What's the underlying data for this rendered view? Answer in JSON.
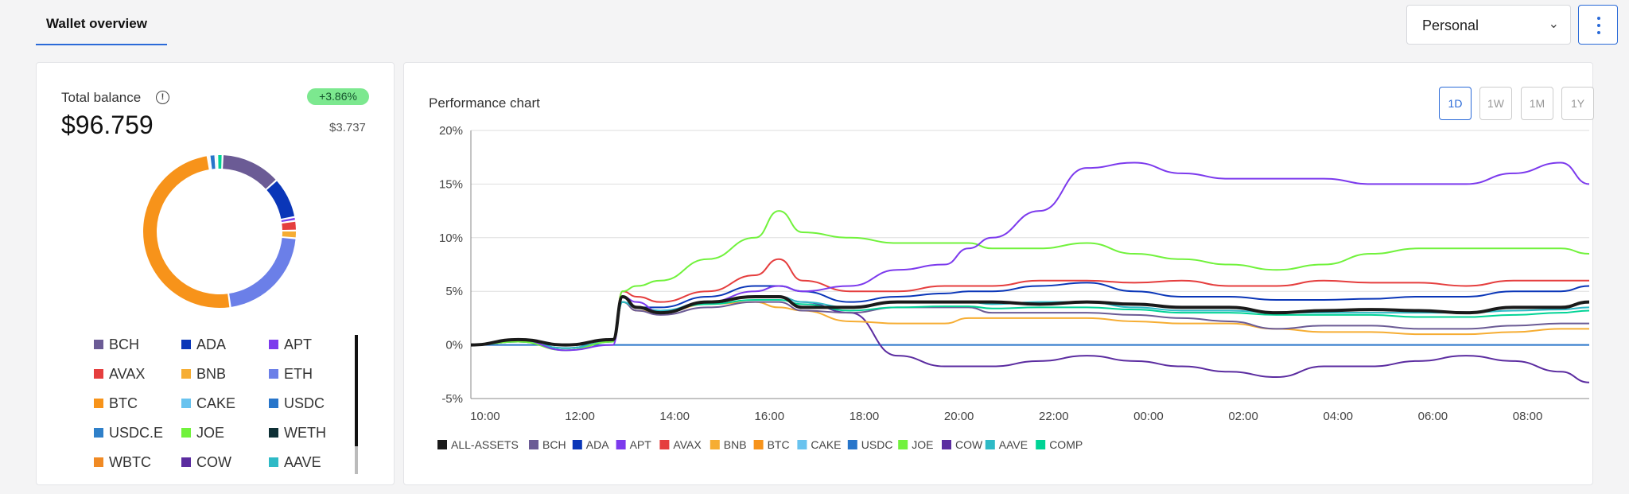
{
  "tabs": [
    {
      "label": "Wallet overview"
    }
  ],
  "account_select": {
    "value": "Personal"
  },
  "balance": {
    "label": "Total balance",
    "amount": "$96.759",
    "change_pct": "+3.86%",
    "change_value": "$3.737"
  },
  "colors": {
    "accent": "#2a6ad8",
    "BCH": "#6b5b95",
    "ADA": "#0a36b8",
    "APT": "#7c3aed",
    "AVAX": "#e53e3e",
    "BNB": "#f6ad33",
    "ETH": "#6b7fe8",
    "BTC": "#f7931a",
    "CAKE": "#69c3ef",
    "USDC": "#2775ca",
    "USDC.E": "#2f80c9",
    "JOE": "#71f23c",
    "WETH": "#0e2f35",
    "WBTC": "#f08a24",
    "COW": "#5b2ca0",
    "AAVE": "#2ebac6",
    "COMP": "#00d395",
    "ALL-ASSETS": "#1a1a1a"
  },
  "allocation": {
    "title": "",
    "slices": [
      {
        "name": "BCH",
        "value": 12.5
      },
      {
        "name": "ADA",
        "value": 8.5
      },
      {
        "name": "APT",
        "value": 0.8
      },
      {
        "name": "AVAX",
        "value": 2.0
      },
      {
        "name": "BNB",
        "value": 1.6
      },
      {
        "name": "ETH",
        "value": 21.0
      },
      {
        "name": "BTC",
        "value": 49.0
      },
      {
        "name": "CAKE",
        "value": 0.4
      },
      {
        "name": "USDC",
        "value": 1.2
      },
      {
        "name": "WETH",
        "value": 0.4
      },
      {
        "name": "COMP",
        "value": 1.1
      }
    ]
  },
  "legend_items": [
    "BCH",
    "ADA",
    "APT",
    "AVAX",
    "BNB",
    "ETH",
    "BTC",
    "CAKE",
    "USDC",
    "USDC.E",
    "JOE",
    "WETH",
    "WBTC",
    "COW",
    "AAVE"
  ],
  "performance": {
    "title": "Performance chart",
    "ranges": [
      "1D",
      "1W",
      "1M",
      "1Y"
    ],
    "active_range": "1D"
  },
  "chart_data": {
    "type": "line",
    "title": "Performance chart",
    "xlabel": "",
    "ylabel": "",
    "x_ticks": [
      "10:00",
      "12:00",
      "14:00",
      "16:00",
      "18:00",
      "20:00",
      "22:00",
      "00:00",
      "02:00",
      "04:00",
      "06:00",
      "08:00"
    ],
    "y_ticks": [
      "20%",
      "15%",
      "10%",
      "5%",
      "0%",
      "-5%"
    ],
    "ylim": [
      -5,
      20
    ],
    "x_hours": [
      0,
      1,
      2,
      3,
      3.2,
      3.5,
      4,
      5,
      6,
      6.5,
      7,
      8,
      9,
      10,
      10.5,
      11,
      12,
      13,
      14,
      15,
      16,
      17,
      18,
      19,
      20,
      21,
      22,
      23,
      23.6
    ],
    "grid": true,
    "legend_position": "bottom-left",
    "series": [
      {
        "name": "ALL-ASSETS",
        "values": [
          0,
          0.5,
          0,
          0.5,
          4.5,
          3.5,
          3,
          4,
          4.5,
          4.5,
          3.5,
          3.5,
          4,
          4,
          4,
          4,
          3.8,
          4,
          3.8,
          3.5,
          3.5,
          3,
          3.2,
          3.3,
          3.2,
          3,
          3.5,
          3.5,
          4
        ]
      },
      {
        "name": "BCH",
        "values": [
          0,
          0.3,
          -0.3,
          0.3,
          4,
          3.2,
          2.8,
          3.5,
          4,
          4,
          3.2,
          3,
          3.5,
          3.5,
          3.5,
          3,
          3,
          3,
          2.8,
          2.5,
          2.2,
          1.5,
          1.8,
          1.8,
          1.5,
          1.5,
          1.8,
          2,
          2
        ]
      },
      {
        "name": "ADA",
        "values": [
          0,
          0.5,
          0,
          0.5,
          4.5,
          3.5,
          3.5,
          4.5,
          5.5,
          5.5,
          5,
          4,
          4.5,
          4.8,
          5,
          5,
          5.5,
          5.8,
          5,
          4.5,
          4.5,
          4.2,
          4.2,
          4.3,
          4.5,
          4.5,
          5,
          5,
          5.5
        ]
      },
      {
        "name": "APT",
        "values": [
          0,
          0.5,
          -0.5,
          0,
          4.5,
          4,
          3,
          4,
          5,
          5.5,
          5,
          5.5,
          7,
          7.5,
          9,
          10,
          12.5,
          16.5,
          17,
          16,
          15.5,
          15.5,
          15.5,
          15,
          15,
          15,
          16,
          17,
          15
        ]
      },
      {
        "name": "AVAX",
        "values": [
          0,
          0.5,
          0,
          0.5,
          5,
          4.5,
          4,
          5,
          6.5,
          8,
          6,
          5,
          5,
          5.5,
          5.5,
          5.5,
          6,
          6,
          5.8,
          6,
          5.5,
          5.5,
          6,
          5.8,
          5.8,
          5.5,
          6,
          6,
          6
        ]
      },
      {
        "name": "BNB",
        "values": [
          0,
          0.3,
          -0.3,
          0.3,
          4,
          3.2,
          3,
          3.8,
          4,
          3.5,
          3.2,
          2.2,
          2,
          2,
          2.5,
          2.5,
          2.5,
          2.5,
          2.2,
          2,
          2,
          1.5,
          1.2,
          1.2,
          1,
          1,
          1.2,
          1.5,
          1.5
        ]
      },
      {
        "name": "JOE",
        "values": [
          0,
          0.3,
          -0.5,
          0.3,
          5,
          5.5,
          6,
          8,
          10,
          12.5,
          10.5,
          10,
          9.5,
          9.5,
          9.5,
          9,
          9,
          9.5,
          8.5,
          8,
          7.5,
          7,
          7.5,
          8.5,
          9,
          9,
          9,
          9,
          8.5
        ]
      },
      {
        "name": "COW",
        "values": [
          0,
          0.5,
          0,
          0.5,
          4.5,
          3.5,
          3,
          4,
          4.5,
          4.5,
          4,
          3,
          -1,
          -2,
          -2,
          -2,
          -1.5,
          -1,
          -1.5,
          -2,
          -2.5,
          -3,
          -2,
          -2,
          -1.5,
          -1,
          -1.5,
          -2.5,
          -3.5
        ]
      },
      {
        "name": "AAVE",
        "values": [
          0,
          0.3,
          -0.3,
          0.3,
          4,
          3.5,
          3.2,
          4,
          4.5,
          4.5,
          4,
          3.5,
          4,
          4,
          4,
          3.8,
          4,
          4,
          3.5,
          3.2,
          3.2,
          3,
          3,
          3,
          3,
          3,
          3.2,
          3.3,
          3.5
        ]
      },
      {
        "name": "COMP",
        "values": [
          0,
          0.3,
          -0.3,
          0.3,
          4,
          3.5,
          3.2,
          3.8,
          4.2,
          4.2,
          3.8,
          3.2,
          3.5,
          3.6,
          3.6,
          3.4,
          3.5,
          3.5,
          3.3,
          3,
          3,
          2.8,
          2.8,
          2.8,
          2.6,
          2.6,
          2.8,
          3,
          3.2
        ]
      },
      {
        "name": "USDC",
        "values": [
          0,
          0,
          0,
          0,
          0,
          0,
          0,
          0,
          0,
          0,
          0,
          0,
          0,
          0,
          0,
          0,
          0,
          0,
          0,
          0,
          0,
          0,
          0,
          0,
          0,
          0,
          0,
          0,
          0
        ]
      }
    ],
    "legend": [
      "ALL-ASSETS",
      "BCH",
      "ADA",
      "APT",
      "AVAX",
      "BNB",
      "BTC",
      "CAKE",
      "USDC",
      "JOE",
      "COW",
      "AAVE",
      "COMP"
    ]
  }
}
